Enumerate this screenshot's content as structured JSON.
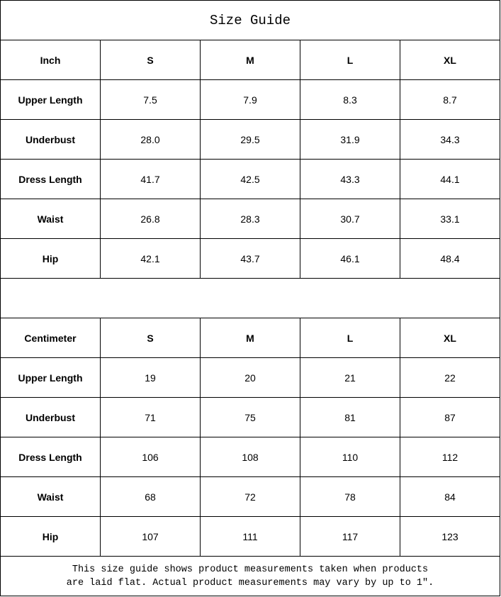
{
  "title": "Size Guide",
  "inch": {
    "unit": "Inch",
    "sizes": [
      "S",
      "M",
      "L",
      "XL"
    ],
    "rows": [
      {
        "label": "Upper Length",
        "values": [
          "7.5",
          "7.9",
          "8.3",
          "8.7"
        ]
      },
      {
        "label": "Underbust",
        "values": [
          "28.0",
          "29.5",
          "31.9",
          "34.3"
        ]
      },
      {
        "label": "Dress Length",
        "values": [
          "41.7",
          "42.5",
          "43.3",
          "44.1"
        ]
      },
      {
        "label": "Waist",
        "values": [
          "26.8",
          "28.3",
          "30.7",
          "33.1"
        ]
      },
      {
        "label": "Hip",
        "values": [
          "42.1",
          "43.7",
          "46.1",
          "48.4"
        ]
      }
    ]
  },
  "cm": {
    "unit": "Centimeter",
    "sizes": [
      "S",
      "M",
      "L",
      "XL"
    ],
    "rows": [
      {
        "label": "Upper Length",
        "values": [
          "19",
          "20",
          "21",
          "22"
        ]
      },
      {
        "label": "Underbust",
        "values": [
          "71",
          "75",
          "81",
          "87"
        ]
      },
      {
        "label": "Dress Length",
        "values": [
          "106",
          "108",
          "110",
          "112"
        ]
      },
      {
        "label": "Waist",
        "values": [
          "68",
          "72",
          "78",
          "84"
        ]
      },
      {
        "label": "Hip",
        "values": [
          "107",
          "111",
          "117",
          "123"
        ]
      }
    ]
  },
  "footer": {
    "line1": "This size guide shows product measurements taken when products",
    "line2": "are laid flat. Actual product measurements may vary by up to 1″."
  }
}
